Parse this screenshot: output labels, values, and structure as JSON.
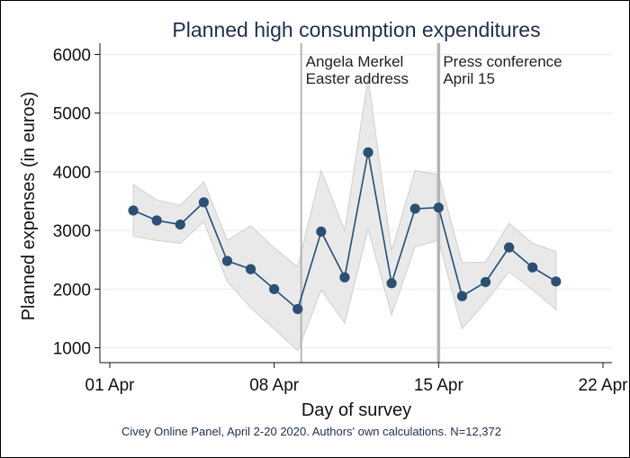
{
  "chart_data": {
    "type": "line",
    "title": "Planned high consumption expenditures",
    "xlabel": "Day of survey",
    "ylabel": "Planned expenses (in euros)",
    "note": "Civey Online Panel, April 2-20 2020. Authors' own calculations. N=12,372",
    "x_ticks": [
      {
        "day": 1,
        "label": "01 Apr"
      },
      {
        "day": 8,
        "label": "08 Apr"
      },
      {
        "day": 15,
        "label": "15 Apr"
      },
      {
        "day": 22,
        "label": "22 Apr"
      }
    ],
    "y_ticks": [
      {
        "value": 1000,
        "label": "1000"
      },
      {
        "value": 2000,
        "label": "2000"
      },
      {
        "value": 3000,
        "label": "3000"
      },
      {
        "value": 4000,
        "label": "4000"
      },
      {
        "value": 5000,
        "label": "5000"
      },
      {
        "value": 6000,
        "label": "6000"
      }
    ],
    "xlim": [
      1,
      22
    ],
    "ylim": [
      1000,
      6000
    ],
    "grid": "horizontal",
    "points": [
      {
        "day": 2,
        "y": 3340,
        "lo": 2900,
        "hi": 3780
      },
      {
        "day": 3,
        "y": 3170,
        "lo": 2830,
        "hi": 3520
      },
      {
        "day": 4,
        "y": 3100,
        "lo": 2780,
        "hi": 3430
      },
      {
        "day": 5,
        "y": 3480,
        "lo": 3150,
        "hi": 3830
      },
      {
        "day": 6,
        "y": 2480,
        "lo": 2130,
        "hi": 2830
      },
      {
        "day": 7,
        "y": 2340,
        "lo": 1680,
        "hi": 3080
      },
      {
        "day": 8,
        "y": 2000,
        "lo": 1320,
        "hi": 2700
      },
      {
        "day": 9,
        "y": 1660,
        "lo": 950,
        "hi": 2380
      },
      {
        "day": 10,
        "y": 2980,
        "lo": 1980,
        "hi": 4020
      },
      {
        "day": 11,
        "y": 2200,
        "lo": 1420,
        "hi": 3000
      },
      {
        "day": 12,
        "y": 4330,
        "lo": 3020,
        "hi": 5600
      },
      {
        "day": 13,
        "y": 2100,
        "lo": 1560,
        "hi": 2650
      },
      {
        "day": 14,
        "y": 3370,
        "lo": 2720,
        "hi": 4020
      },
      {
        "day": 15,
        "y": 3390,
        "lo": 2830,
        "hi": 3950
      },
      {
        "day": 16,
        "y": 1880,
        "lo": 1320,
        "hi": 2450
      },
      {
        "day": 17,
        "y": 2120,
        "lo": 1780,
        "hi": 2460
      },
      {
        "day": 18,
        "y": 2710,
        "lo": 2290,
        "hi": 3120
      },
      {
        "day": 19,
        "y": 2370,
        "lo": 1990,
        "hi": 2780
      },
      {
        "day": 20,
        "y": 2130,
        "lo": 1650,
        "hi": 2640
      }
    ],
    "events": [
      {
        "day": 9.15,
        "lines": [
          "Angela Merkel",
          "Easter address"
        ]
      },
      {
        "day": 15,
        "lines": [
          "Press conference",
          "April 15"
        ]
      }
    ],
    "colors": {
      "series": "#1f4e79",
      "marker": "#2c4f73",
      "ci_fill": "#e9e9e9",
      "ci_edge": "#cfcfcf",
      "event_line": "#b4b4b4",
      "grid": "#e6eef2"
    }
  }
}
